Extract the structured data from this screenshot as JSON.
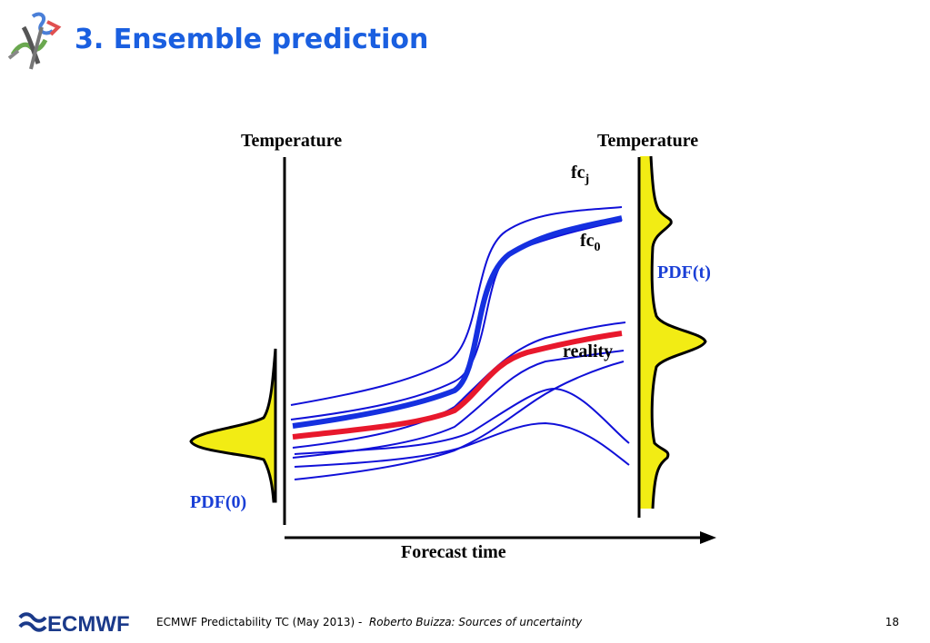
{
  "slide": {
    "title": "3. Ensemble prediction",
    "page_number": "18"
  },
  "diagram": {
    "left_axis_label": "Temperature",
    "right_axis_label": "Temperature",
    "x_axis_label": "Forecast time",
    "pdf_initial_label": "PDF(0)",
    "pdf_final_label": "PDF(t)",
    "fc_j_base": "fc",
    "fc_j_sub": "j",
    "fc_0_base": "fc",
    "fc_0_sub": "0",
    "reality_label": "reality",
    "colors": {
      "ensemble": "#1010d8",
      "control": "#1530e0",
      "reality": "#e8182c",
      "pdf_fill": "#f2ec14"
    }
  },
  "footer": {
    "logo_text": "ECMWF",
    "event": "ECMWF Predictability TC (May 2013) -",
    "author_talk": "Roberto Buizza: Sources of uncertainty"
  }
}
